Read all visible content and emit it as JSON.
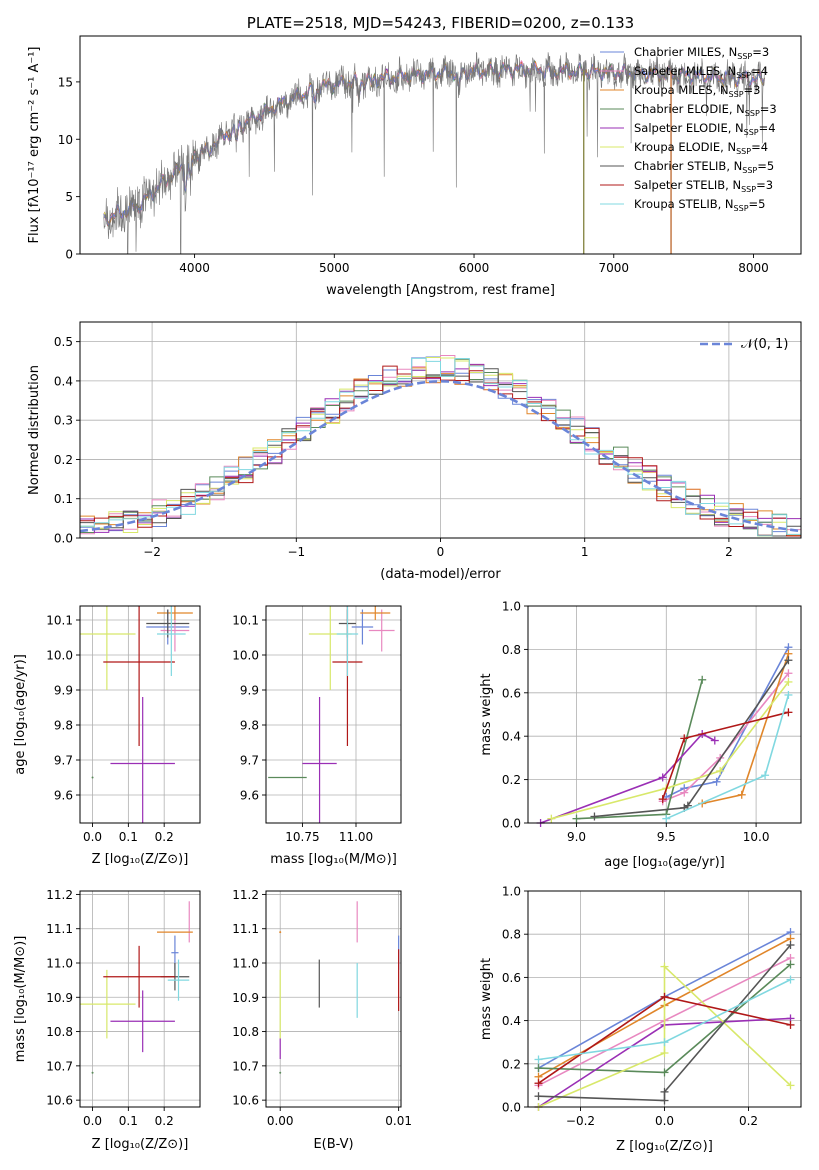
{
  "colors": {
    "chabrier_miles": "#6a85d8",
    "salpeter_miles": "#e888c0",
    "kroupa_miles": "#e0862a",
    "chabrier_elodie": "#5a8a5a",
    "salpeter_elodie": "#9a2fb5",
    "kroupa_elodie": "#d8e86a",
    "chabrier_stelib": "#555555",
    "salpeter_stelib": "#b01818",
    "kroupa_stelib": "#80d8e0",
    "normal_curve": "#6a85d8",
    "spectrum_gray": "#777777"
  },
  "chart_data": [
    {
      "type": "line",
      "title": "PLATE=2518, MJD=54243, FIBERID=0200, z=0.133",
      "xlabel": "wavelength [Angstrom, rest frame]",
      "ylabel": "Flux [fλ10⁻¹⁷ erg cm⁻² s⁻¹ A⁻¹]",
      "xlim": [
        3180,
        8340
      ],
      "ylim": [
        0,
        19
      ],
      "xticks": [
        4000,
        5000,
        6000,
        7000,
        8000
      ],
      "yticks": [
        0,
        5,
        10,
        15
      ],
      "legend_position": "top-right",
      "legend": [
        {
          "label": "Chabrier MILES, N",
          "sub": "SSP",
          "eq": "=3",
          "color_key": "chabrier_miles"
        },
        {
          "label": "Salpeter MILES, N",
          "sub": "SSP",
          "eq": "=4",
          "color_key": "salpeter_miles"
        },
        {
          "label": "Kroupa MILES, N",
          "sub": "SSP",
          "eq": "=3",
          "color_key": "kroupa_miles"
        },
        {
          "label": "Chabrier ELODIE, N",
          "sub": "SSP",
          "eq": "=3",
          "color_key": "chabrier_elodie"
        },
        {
          "label": "Salpeter ELODIE, N",
          "sub": "SSP",
          "eq": "=4",
          "color_key": "salpeter_elodie"
        },
        {
          "label": "Kroupa ELODIE, N",
          "sub": "SSP",
          "eq": "=4",
          "color_key": "kroupa_elodie"
        },
        {
          "label": "Chabrier STELIB, N",
          "sub": "SSP",
          "eq": "=5",
          "color_key": "chabrier_stelib"
        },
        {
          "label": "Salpeter STELIB, N",
          "sub": "SSP",
          "eq": "=3",
          "color_key": "salpeter_stelib"
        },
        {
          "label": "Kroupa STELIB, N",
          "sub": "SSP",
          "eq": "=5",
          "color_key": "kroupa_stelib"
        }
      ],
      "continuum": [
        [
          3350,
          3.0
        ],
        [
          3600,
          4.2
        ],
        [
          3800,
          6.5
        ],
        [
          4000,
          8.5
        ],
        [
          4300,
          11.0
        ],
        [
          4600,
          13.0
        ],
        [
          4900,
          14.6
        ],
        [
          5300,
          15.3
        ],
        [
          5800,
          15.8
        ],
        [
          6300,
          16.1
        ],
        [
          6800,
          15.9
        ],
        [
          7300,
          15.7
        ],
        [
          7800,
          15.4
        ],
        [
          8080,
          15.2
        ]
      ]
    },
    {
      "type": "line",
      "xlabel": "(data-model)/error",
      "ylabel": "Normed distribution",
      "xlim": [
        -2.5,
        2.5
      ],
      "ylim": [
        0,
        0.55
      ],
      "xticks": [
        -2,
        -1,
        0,
        1,
        2
      ],
      "yticks": [
        0.0,
        0.1,
        0.2,
        0.3,
        0.4,
        0.5
      ],
      "legend_position": "top-right",
      "legend": [
        {
          "label": "𝒩(0, 1)",
          "color_key": "normal_curve"
        }
      ],
      "bin_width": 0.1
    },
    {
      "type": "scatter",
      "xlabel": "Z [log₁₀(Z/Z⊙)]",
      "ylabel": "age  [log₁₀(age/yr)]",
      "xlim": [
        -0.035,
        0.3
      ],
      "ylim": [
        9.52,
        10.14
      ],
      "xticks": [
        0.0,
        0.1,
        0.2
      ],
      "yticks": [
        9.6,
        9.7,
        9.8,
        9.9,
        10.0,
        10.1
      ],
      "errorbars": [
        {
          "color_key": "chabrier_miles",
          "x": 0.21,
          "xerr": 0.06,
          "y": 10.08,
          "yerr": 0.05
        },
        {
          "color_key": "salpeter_miles",
          "x": 0.23,
          "xerr": 0.04,
          "y": 10.07,
          "yerr": 0.06
        },
        {
          "color_key": "kroupa_miles",
          "x": 0.23,
          "xerr": 0.05,
          "y": 10.12,
          "yerr": 0.02
        },
        {
          "color_key": "chabrier_elodie",
          "x": 0.0,
          "xerr": 0.0,
          "y": 9.65,
          "yerr": 0.0
        },
        {
          "color_key": "salpeter_elodie",
          "x": 0.14,
          "xerr": 0.09,
          "y": 9.69,
          "yerr": 0.19
        },
        {
          "color_key": "kroupa_elodie",
          "x": 0.04,
          "xerr": 0.08,
          "y": 10.06,
          "yerr": 0.16
        },
        {
          "color_key": "chabrier_stelib",
          "x": 0.21,
          "xerr": 0.06,
          "y": 10.09,
          "yerr": 0.04
        },
        {
          "color_key": "salpeter_stelib",
          "x": 0.13,
          "xerr": 0.1,
          "y": 9.98,
          "yerr": 0.24
        },
        {
          "color_key": "kroupa_stelib",
          "x": 0.22,
          "xerr": 0.04,
          "y": 10.06,
          "yerr": 0.12
        }
      ]
    },
    {
      "type": "scatter",
      "xlabel": "mass [log₁₀(M/M⊙)]",
      "xlim": [
        10.58,
        11.21
      ],
      "ylim": [
        9.52,
        10.14
      ],
      "xticks": [
        10.75,
        11.0
      ],
      "yticks": [
        9.6,
        9.7,
        9.8,
        9.9,
        10.0,
        10.1
      ],
      "errorbars": [
        {
          "color_key": "chabrier_miles",
          "x": 11.03,
          "xerr": 0.05,
          "y": 10.08,
          "yerr": 0.05
        },
        {
          "color_key": "salpeter_miles",
          "x": 11.12,
          "xerr": 0.06,
          "y": 10.07,
          "yerr": 0.06
        },
        {
          "color_key": "kroupa_miles",
          "x": 11.09,
          "xerr": 0.07,
          "y": 10.12,
          "yerr": 0.02
        },
        {
          "color_key": "chabrier_elodie",
          "x": 10.68,
          "xerr": 0.09,
          "y": 9.65,
          "yerr": 0.0
        },
        {
          "color_key": "salpeter_elodie",
          "x": 10.83,
          "xerr": 0.08,
          "y": 9.69,
          "yerr": 0.19
        },
        {
          "color_key": "kroupa_elodie",
          "x": 10.88,
          "xerr": 0.1,
          "y": 10.06,
          "yerr": 0.16
        },
        {
          "color_key": "chabrier_stelib",
          "x": 10.96,
          "xerr": 0.04,
          "y": 10.09,
          "yerr": 0.04
        },
        {
          "color_key": "salpeter_stelib",
          "x": 10.96,
          "xerr": 0.07,
          "y": 9.98,
          "yerr": 0.24
        },
        {
          "color_key": "kroupa_stelib",
          "x": 10.96,
          "xerr": 0.05,
          "y": 10.06,
          "yerr": 0.12
        }
      ]
    },
    {
      "type": "line",
      "xlabel": "age  [log₁₀(age/yr)]",
      "ylabel": "mass weight",
      "xlim": [
        8.73,
        10.25
      ],
      "ylim": [
        0,
        1.0
      ],
      "xticks": [
        9.0,
        9.5,
        10.0
      ],
      "yticks": [
        0.0,
        0.2,
        0.4,
        0.6,
        0.8,
        1.0
      ],
      "grid": true,
      "series": [
        {
          "color_key": "chabrier_miles",
          "x": [
            9.5,
            9.6,
            9.78,
            10.18
          ],
          "y": [
            0.12,
            0.16,
            0.19,
            0.81
          ]
        },
        {
          "color_key": "salpeter_miles",
          "x": [
            9.48,
            9.6,
            9.8,
            10.18
          ],
          "y": [
            0.1,
            0.14,
            0.3,
            0.69
          ]
        },
        {
          "color_key": "kroupa_miles",
          "x": [
            9.7,
            9.92,
            10.18
          ],
          "y": [
            0.09,
            0.13,
            0.78
          ]
        },
        {
          "color_key": "chabrier_elodie",
          "x": [
            9.0,
            9.5,
            9.7
          ],
          "y": [
            0.02,
            0.04,
            0.66
          ]
        },
        {
          "color_key": "salpeter_elodie",
          "x": [
            8.8,
            9.48,
            9.7,
            9.77
          ],
          "y": [
            0.0,
            0.21,
            0.41,
            0.38
          ]
        },
        {
          "color_key": "kroupa_elodie",
          "x": [
            8.86,
            9.5,
            9.8,
            10.18
          ],
          "y": [
            0.02,
            0.16,
            0.24,
            0.65
          ]
        },
        {
          "color_key": "chabrier_stelib",
          "x": [
            9.1,
            9.6,
            9.62,
            10.18
          ],
          "y": [
            0.03,
            0.07,
            0.08,
            0.75
          ]
        },
        {
          "color_key": "salpeter_stelib",
          "x": [
            9.48,
            9.6,
            10.18
          ],
          "y": [
            0.11,
            0.39,
            0.51
          ]
        },
        {
          "color_key": "kroupa_stelib",
          "x": [
            9.5,
            10.05,
            10.18
          ],
          "y": [
            0.02,
            0.22,
            0.59
          ]
        }
      ]
    },
    {
      "type": "scatter",
      "xlabel": "Z [log₁₀(Z/Z⊙)]",
      "ylabel": "mass [log₁₀(M/M⊙)]",
      "xlim": [
        -0.035,
        0.3
      ],
      "ylim": [
        10.58,
        11.21
      ],
      "xticks": [
        0.0,
        0.1,
        0.2
      ],
      "yticks": [
        10.6,
        10.7,
        10.8,
        10.9,
        11.0,
        11.1,
        11.2
      ],
      "errorbars": [
        {
          "color_key": "chabrier_miles",
          "x": 0.23,
          "xerr": 0.01,
          "y": 11.03,
          "yerr": 0.05
        },
        {
          "color_key": "salpeter_miles",
          "x": 0.27,
          "xerr": 0.0,
          "y": 11.12,
          "yerr": 0.06
        },
        {
          "color_key": "kroupa_miles",
          "x": 0.23,
          "xerr": 0.05,
          "y": 11.09,
          "yerr": 0.0
        },
        {
          "color_key": "chabrier_elodie",
          "x": 0.0,
          "xerr": 0.0,
          "y": 10.68,
          "yerr": 0.0
        },
        {
          "color_key": "salpeter_elodie",
          "x": 0.14,
          "xerr": 0.09,
          "y": 10.83,
          "yerr": 0.09
        },
        {
          "color_key": "kroupa_elodie",
          "x": 0.04,
          "xerr": 0.08,
          "y": 10.88,
          "yerr": 0.1
        },
        {
          "color_key": "chabrier_stelib",
          "x": 0.23,
          "xerr": 0.04,
          "y": 10.96,
          "yerr": 0.04
        },
        {
          "color_key": "salpeter_stelib",
          "x": 0.13,
          "xerr": 0.1,
          "y": 10.96,
          "yerr": 0.09
        },
        {
          "color_key": "kroupa_stelib",
          "x": 0.24,
          "xerr": 0.03,
          "y": 10.95,
          "yerr": 0.06
        }
      ]
    },
    {
      "type": "scatter",
      "xlabel": "E(B-V)",
      "xlim": [
        -0.0012,
        0.0102
      ],
      "ylim": [
        10.58,
        11.21
      ],
      "xticks": [
        0.0,
        0.01
      ],
      "yticks": [
        10.6,
        10.7,
        10.8,
        10.9,
        11.0,
        11.1,
        11.2
      ],
      "errorbars": [
        {
          "color_key": "chabrier_miles",
          "x": 0.01,
          "xerr": 0,
          "y": 11.03,
          "yerr": 0.05
        },
        {
          "color_key": "salpeter_miles",
          "x": 0.0065,
          "xerr": 0,
          "y": 11.12,
          "yerr": 0.06
        },
        {
          "color_key": "kroupa_miles",
          "x": 0.0,
          "xerr": 0,
          "y": 11.09,
          "yerr": 0.0
        },
        {
          "color_key": "chabrier_elodie",
          "x": 0.0,
          "xerr": 0,
          "y": 10.68,
          "yerr": 0.0
        },
        {
          "color_key": "salpeter_elodie",
          "x": 0.0,
          "xerr": 0,
          "y": 10.75,
          "yerr": 0.03
        },
        {
          "color_key": "kroupa_elodie",
          "x": 0.0,
          "xerr": 0,
          "y": 10.88,
          "yerr": 0.1
        },
        {
          "color_key": "chabrier_stelib",
          "x": 0.0033,
          "xerr": 0,
          "y": 10.94,
          "yerr": 0.07
        },
        {
          "color_key": "salpeter_stelib",
          "x": 0.01,
          "xerr": 0,
          "y": 10.95,
          "yerr": 0.09
        },
        {
          "color_key": "kroupa_stelib",
          "x": 0.0065,
          "xerr": 0,
          "y": 10.92,
          "yerr": 0.08
        }
      ]
    },
    {
      "type": "line",
      "xlabel": "Z [log₁₀(Z/Z⊙)]",
      "ylabel": "mass weight",
      "xlim": [
        -0.325,
        0.325
      ],
      "ylim": [
        0,
        1.0
      ],
      "xticks": [
        -0.2,
        0.0,
        0.2
      ],
      "yticks": [
        0.0,
        0.2,
        0.4,
        0.6,
        0.8,
        1.0
      ],
      "grid": true,
      "series": [
        {
          "color_key": "chabrier_miles",
          "x": [
            -0.3,
            0.0,
            0.3
          ],
          "y": [
            0.18,
            0.51,
            0.81
          ]
        },
        {
          "color_key": "salpeter_miles",
          "x": [
            -0.3,
            0.0,
            0.3
          ],
          "y": [
            0.1,
            0.4,
            0.69
          ]
        },
        {
          "color_key": "kroupa_miles",
          "x": [
            -0.3,
            0.0,
            0.3
          ],
          "y": [
            0.14,
            0.47,
            0.78
          ]
        },
        {
          "color_key": "chabrier_elodie",
          "x": [
            -0.3,
            0.0,
            0.3
          ],
          "y": [
            0.18,
            0.16,
            0.66
          ]
        },
        {
          "color_key": "salpeter_elodie",
          "x": [
            -0.3,
            0.0,
            0.3
          ],
          "y": [
            0.0,
            0.38,
            0.41
          ]
        },
        {
          "color_key": "kroupa_elodie",
          "x": [
            -0.3,
            0.0,
            0.0,
            0.3
          ],
          "y": [
            0.0,
            0.25,
            0.65,
            0.1
          ]
        },
        {
          "color_key": "chabrier_stelib",
          "x": [
            -0.3,
            0.0,
            0.0,
            0.3
          ],
          "y": [
            0.05,
            0.03,
            0.07,
            0.75
          ]
        },
        {
          "color_key": "salpeter_stelib",
          "x": [
            -0.3,
            0.0,
            0.3
          ],
          "y": [
            0.11,
            0.51,
            0.38
          ]
        },
        {
          "color_key": "kroupa_stelib",
          "x": [
            -0.3,
            0.0,
            0.3
          ],
          "y": [
            0.22,
            0.3,
            0.59
          ]
        }
      ]
    }
  ]
}
